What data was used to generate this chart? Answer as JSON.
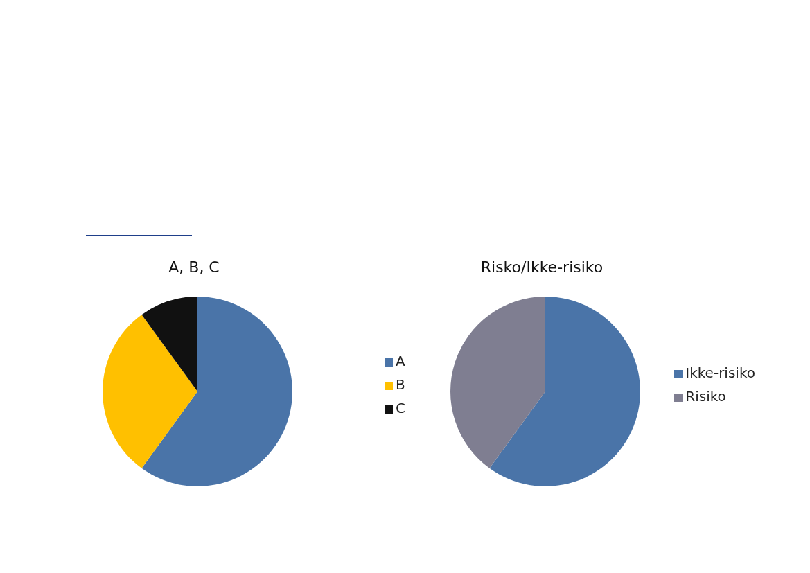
{
  "chart_data": [
    {
      "type": "pie",
      "title": "A, B, C",
      "categories": [
        "A",
        "B",
        "C"
      ],
      "values": [
        60,
        30,
        10
      ],
      "colors": [
        "#4a74a8",
        "#ffc000",
        "#111111"
      ],
      "legend": "right"
    },
    {
      "type": "pie",
      "title": "Risko/Ikke-risiko",
      "categories": [
        "Ikke-risiko",
        "Risiko"
      ],
      "values": [
        60,
        40
      ],
      "colors": [
        "#4a74a8",
        "#7f7e91"
      ],
      "legend": "right"
    }
  ]
}
